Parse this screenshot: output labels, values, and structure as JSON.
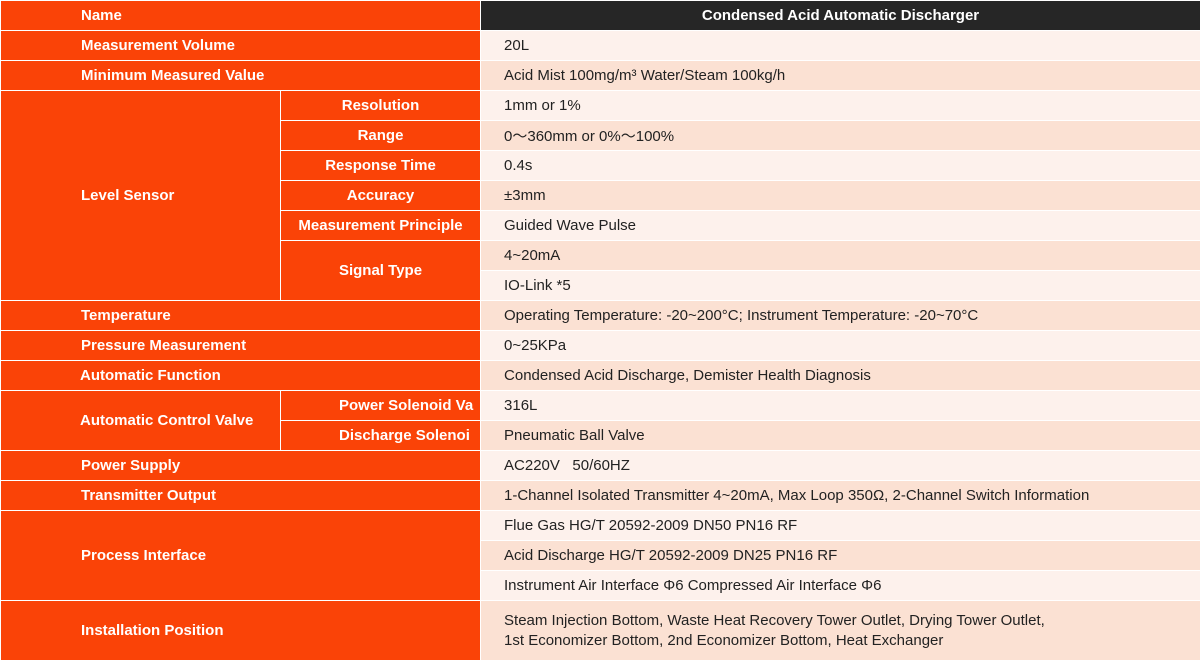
{
  "header": {
    "label": "Name",
    "value": "Condensed Acid Automatic Discharger"
  },
  "rows": [
    {
      "label": "Measurement Volume",
      "value": "20L"
    },
    {
      "label": "Minimum Measured Value",
      "value": "Acid Mist 100mg/m³ Water/Steam 100kg/h"
    },
    {
      "label": "Level Sensor",
      "items": [
        {
          "label": "Resolution",
          "value": "1mm or 1%"
        },
        {
          "label": "Range",
          "value": "0～360mm or 0%～100%"
        },
        {
          "label": "Response Time",
          "value": "0.4s"
        },
        {
          "label": "Accuracy",
          "value": "±3mm"
        },
        {
          "label": "Measurement Principle",
          "value": "Guided Wave Pulse"
        },
        {
          "label": "Signal Type",
          "values": [
            "4~20mA",
            "IO-Link *5"
          ]
        }
      ]
    },
    {
      "label": "Temperature",
      "value": "Operating Temperature: -20~200°C; Instrument Temperature: -20~70°C"
    },
    {
      "label": "Pressure Measurement",
      "value": "0~25KPa"
    },
    {
      "label": "Automatic Function",
      "value": "Condensed Acid Discharge, Demister Health Diagnosis"
    },
    {
      "label": "Automatic Control Valve",
      "items": [
        {
          "label": "Power Solenoid Va",
          "value": "316L"
        },
        {
          "label": "Discharge Solenoi",
          "value": "Pneumatic Ball Valve"
        }
      ]
    },
    {
      "label": "Power Supply",
      "value": "AC220V   50/60HZ"
    },
    {
      "label": "Transmitter Output",
      "value": "1-Channel Isolated Transmitter 4~20mA, Max Loop 350Ω, 2-Channel Switch Information"
    },
    {
      "label": "Process Interface",
      "values": [
        "Flue Gas HG/T 20592-2009 DN50 PN16 RF",
        "Acid Discharge HG/T 20592-2009 DN25 PN16 RF",
        "Instrument Air Interface Φ6 Compressed Air Interface Φ6"
      ]
    },
    {
      "label": "Installation Position",
      "lines": [
        "Steam Injection Bottom, Waste Heat Recovery Tower Outlet, Drying Tower Outlet,",
        "1st Economizer Bottom, 2nd Economizer Bottom, Heat Exchanger"
      ]
    }
  ]
}
